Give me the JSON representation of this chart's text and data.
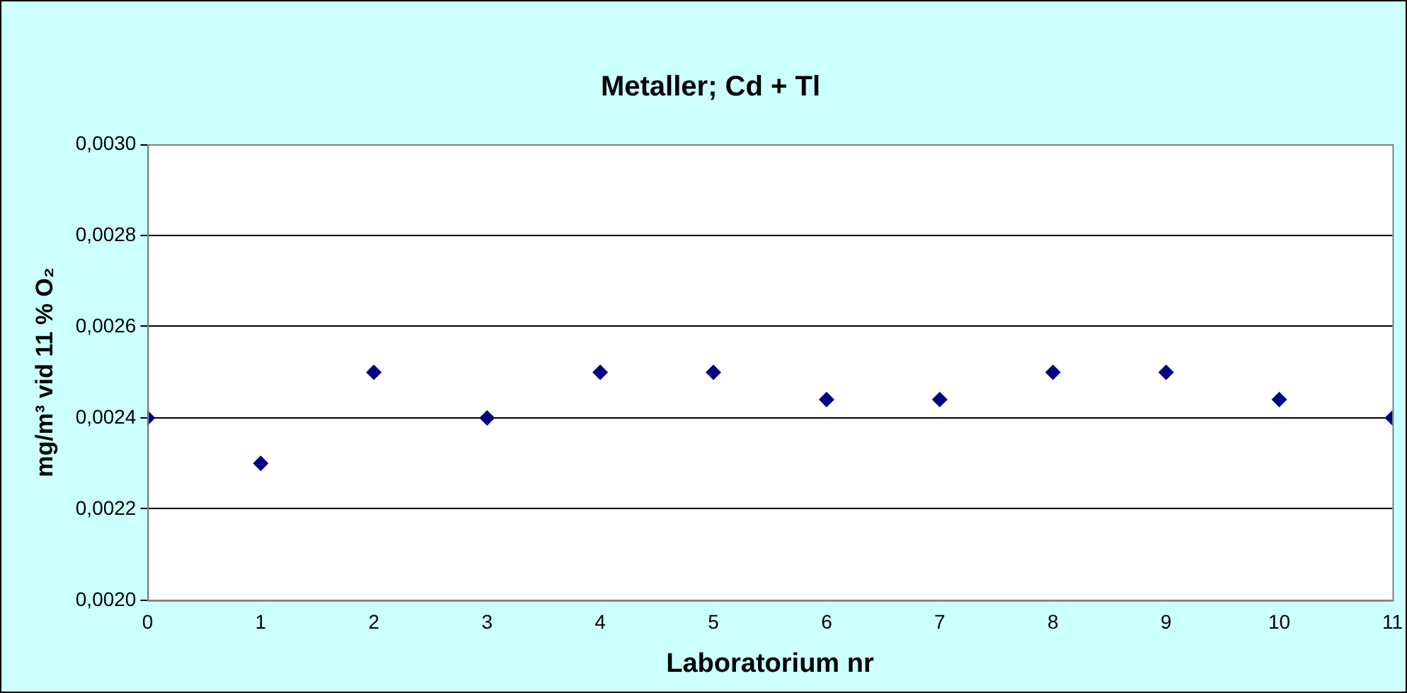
{
  "chart_data": {
    "type": "scatter",
    "title": "Metaller; Cd + Tl",
    "xlabel": "Laboratorium nr",
    "ylabel": "mg/m³ vid 11 % O₂",
    "x": [
      0,
      1,
      2,
      3,
      4,
      5,
      6,
      7,
      8,
      9,
      10,
      11
    ],
    "series": [
      {
        "color": "#000080",
        "values": [
          0.0024,
          0.0023,
          0.0025,
          0.0024,
          0.0025,
          0.0025,
          0.00244,
          0.00244,
          0.0025,
          0.0025,
          0.00244,
          0.0024
        ]
      }
    ],
    "xlim": [
      0,
      11
    ],
    "xticks": [
      0,
      1,
      2,
      3,
      4,
      5,
      6,
      7,
      8,
      9,
      10,
      11
    ],
    "ylim": [
      0.002,
      0.003
    ],
    "yticks": [
      {
        "value": 0.002,
        "label": "0,0020"
      },
      {
        "value": 0.0022,
        "label": "0,0022"
      },
      {
        "value": 0.0024,
        "label": "0,0024"
      },
      {
        "value": 0.0026,
        "label": "0,0026"
      },
      {
        "value": 0.0028,
        "label": "0,0028"
      },
      {
        "value": 0.003,
        "label": "0,0030"
      }
    ],
    "grid": "y",
    "legend": false,
    "marker": "diamond"
  }
}
